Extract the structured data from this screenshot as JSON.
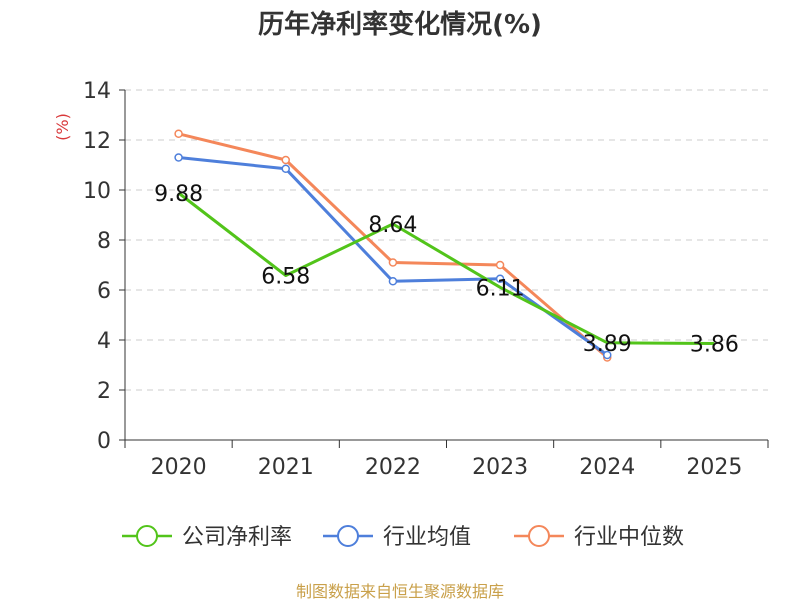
{
  "chart_data": {
    "type": "line",
    "title": "历年净利率变化情况(%)",
    "ylabel": "(%)",
    "xlabel": "",
    "ylim": [
      0,
      14
    ],
    "yticks": [
      "0",
      "2",
      "4",
      "6",
      "8",
      "10",
      "12",
      "14"
    ],
    "categories": [
      "2020",
      "2021",
      "2022",
      "2023",
      "2024",
      "2025"
    ],
    "grid": true,
    "legend_position": "bottom",
    "series": [
      {
        "name": "公司净利率",
        "color": "#52c41a",
        "values": [
          9.88,
          6.58,
          8.64,
          6.11,
          3.89,
          3.86
        ],
        "labels": [
          "9.88",
          "6.58",
          "8.64",
          "6.11",
          "3.89",
          "3.86"
        ]
      },
      {
        "name": "行业均值",
        "color": "#4e7fdb",
        "values": [
          11.3,
          10.85,
          6.35,
          6.45,
          3.4,
          null
        ]
      },
      {
        "name": "行业中位数",
        "color": "#f4875a",
        "values": [
          12.25,
          11.2,
          7.1,
          7.0,
          3.3,
          null
        ]
      }
    ]
  },
  "footer": {
    "source": "制图数据来自恒生聚源数据库"
  }
}
